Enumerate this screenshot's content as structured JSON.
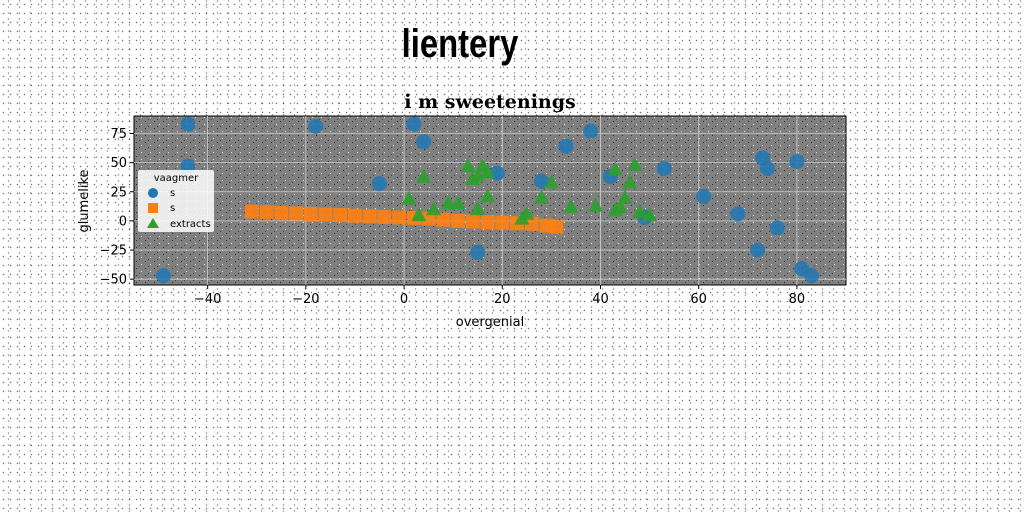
{
  "suptitle": "lientery",
  "chart_data": {
    "type": "scatter",
    "title": "i m sweetenings",
    "xlabel": "overgenial",
    "ylabel": "glumelike",
    "xlim": [
      -55,
      90
    ],
    "ylim": [
      -55,
      90
    ],
    "xticks": [
      -40,
      -20,
      0,
      20,
      40,
      60,
      80
    ],
    "yticks": [
      -50,
      -25,
      0,
      25,
      50,
      75
    ],
    "grid": true,
    "legend": {
      "title": "vaagmer",
      "placement": "center-left"
    },
    "colors": {
      "plot_bg": "#808080",
      "blue": "#1f77b4",
      "orange": "#ff7f0e",
      "green": "#2ca02c"
    },
    "series": [
      {
        "name": "s",
        "marker": "circle",
        "color": "#1f77b4",
        "points": [
          [
            -44,
            83
          ],
          [
            -18,
            81
          ],
          [
            2,
            83
          ],
          [
            -44,
            47
          ],
          [
            4,
            68
          ],
          [
            33,
            64
          ],
          [
            38,
            77
          ],
          [
            -5,
            32
          ],
          [
            19,
            41
          ],
          [
            28,
            34
          ],
          [
            42,
            38
          ],
          [
            49,
            3
          ],
          [
            53,
            45
          ],
          [
            61,
            21
          ],
          [
            68,
            6
          ],
          [
            73,
            54
          ],
          [
            74,
            45
          ],
          [
            76,
            -6
          ],
          [
            80,
            51
          ],
          [
            72,
            -25
          ],
          [
            15,
            -27
          ],
          [
            81,
            -41
          ],
          [
            83,
            -47
          ],
          [
            -49,
            -47
          ]
        ]
      },
      {
        "name": "s",
        "marker": "square",
        "color": "#ff7f0e",
        "points": [
          [
            -31,
            8
          ],
          [
            -28,
            7.5
          ],
          [
            -25,
            7
          ],
          [
            -22,
            6.5
          ],
          [
            -19,
            6
          ],
          [
            -16,
            5.5
          ],
          [
            -13,
            5
          ],
          [
            -10,
            4.5
          ],
          [
            -7,
            4
          ],
          [
            -4,
            3.5
          ],
          [
            -1,
            3
          ],
          [
            2,
            2.5
          ],
          [
            5,
            2
          ],
          [
            8,
            1
          ],
          [
            11,
            0
          ],
          [
            14,
            -0.5
          ],
          [
            17,
            -1
          ],
          [
            20,
            -1.5
          ],
          [
            23,
            -2
          ],
          [
            26,
            -2.5
          ],
          [
            29,
            -4
          ],
          [
            31,
            -5
          ]
        ]
      },
      {
        "name": "extracts",
        "marker": "triangle",
        "color": "#2ca02c",
        "points": [
          [
            1,
            19
          ],
          [
            3,
            5
          ],
          [
            4,
            38
          ],
          [
            6,
            10
          ],
          [
            9,
            15
          ],
          [
            11,
            15
          ],
          [
            13,
            47
          ],
          [
            14,
            36
          ],
          [
            15,
            39
          ],
          [
            15,
            10
          ],
          [
            16,
            47
          ],
          [
            17,
            42
          ],
          [
            17,
            21
          ],
          [
            24,
            2
          ],
          [
            25,
            6
          ],
          [
            28,
            20
          ],
          [
            30,
            33
          ],
          [
            34,
            12
          ],
          [
            39,
            13
          ],
          [
            43,
            44
          ],
          [
            43,
            9
          ],
          [
            44,
            12
          ],
          [
            45,
            20
          ],
          [
            46,
            33
          ],
          [
            47,
            48
          ],
          [
            48,
            8
          ],
          [
            50,
            5
          ]
        ]
      }
    ]
  }
}
